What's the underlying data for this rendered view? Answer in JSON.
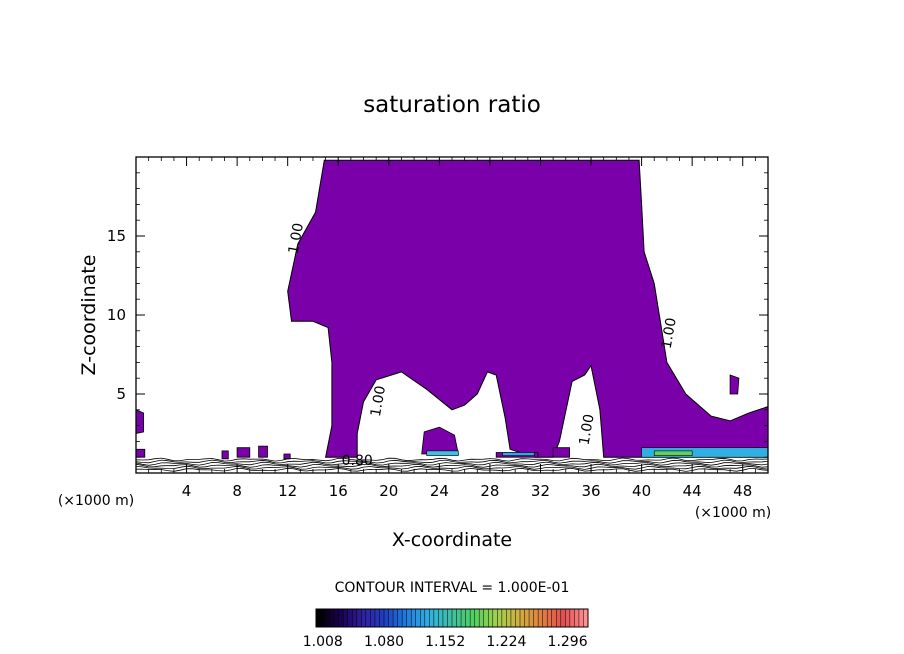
{
  "chart_data": {
    "type": "contour",
    "title": "saturation ratio",
    "xlabel": "X-coordinate",
    "ylabel": "Z-coordinate",
    "x_unit_label": "(×1000 m)",
    "y_unit_label": "(×1000 m)",
    "xlim": [
      0,
      50
    ],
    "ylim": [
      0,
      20
    ],
    "x_ticks": [
      4,
      8,
      12,
      16,
      20,
      24,
      28,
      32,
      36,
      40,
      44,
      48
    ],
    "y_ticks": [
      5,
      10,
      15
    ],
    "x_tick_labels": [
      "4",
      "8",
      "12",
      "16",
      "20",
      "24",
      "28",
      "32",
      "36",
      "40",
      "44",
      "48"
    ],
    "y_tick_labels": [
      "5",
      "10",
      "15"
    ],
    "contour_interval_text": "CONTOUR INTERVAL = 1.000E-01",
    "contour_labels": [
      {
        "text": "1.00",
        "x": 13.0,
        "z": 14.8
      },
      {
        "text": "1.00",
        "x": 19.5,
        "z": 4.5
      },
      {
        "text": "1.00",
        "x": 36.0,
        "z": 2.7
      },
      {
        "text": "1.00",
        "x": 42.5,
        "z": 8.8
      },
      {
        "text": "0.80",
        "x": 17.5,
        "z": 0.5
      }
    ],
    "main_region": {
      "level": 1.008,
      "color": "#7a00aa",
      "outline": [
        [
          14.9,
          19.8
        ],
        [
          39.8,
          19.8
        ],
        [
          40.0,
          17.0
        ],
        [
          40.2,
          14.0
        ],
        [
          41.0,
          12.0
        ],
        [
          41.5,
          9.5
        ],
        [
          42.0,
          7.0
        ],
        [
          43.5,
          5.0
        ],
        [
          45.5,
          3.6
        ],
        [
          47.0,
          3.3
        ],
        [
          48.5,
          3.8
        ],
        [
          50.0,
          4.2
        ],
        [
          50.0,
          1.0
        ],
        [
          37.0,
          1.0
        ],
        [
          36.7,
          4.0
        ],
        [
          36.0,
          6.8
        ],
        [
          35.5,
          6.2
        ],
        [
          34.5,
          5.8
        ],
        [
          33.5,
          2.0
        ],
        [
          33.0,
          1.0
        ],
        [
          31.5,
          1.0
        ],
        [
          29.6,
          1.5
        ],
        [
          29.2,
          3.5
        ],
        [
          28.5,
          6.2
        ],
        [
          27.8,
          6.4
        ],
        [
          27.0,
          5.0
        ],
        [
          26.0,
          4.3
        ],
        [
          25.0,
          4.0
        ],
        [
          23.0,
          5.3
        ],
        [
          21.0,
          6.4
        ],
        [
          19.0,
          5.9
        ],
        [
          18.0,
          4.5
        ],
        [
          17.5,
          2.5
        ],
        [
          17.5,
          1.0
        ],
        [
          15.0,
          1.0
        ],
        [
          15.5,
          3.0
        ],
        [
          15.5,
          7.0
        ],
        [
          15.2,
          9.2
        ],
        [
          14.0,
          9.6
        ],
        [
          12.3,
          9.6
        ],
        [
          12.0,
          11.5
        ],
        [
          12.8,
          14.5
        ],
        [
          14.2,
          16.5
        ]
      ],
      "islands": [
        [
          [
            0.0,
            4.0
          ],
          [
            0.6,
            3.8
          ],
          [
            0.6,
            2.6
          ],
          [
            0.0,
            2.5
          ]
        ],
        [
          [
            22.8,
            2.6
          ],
          [
            24.0,
            2.9
          ],
          [
            25.2,
            2.4
          ],
          [
            25.5,
            1.2
          ],
          [
            22.6,
            1.2
          ]
        ],
        [
          [
            28.5,
            1.3
          ],
          [
            31.8,
            1.3
          ],
          [
            31.8,
            1.0
          ],
          [
            28.5,
            1.0
          ]
        ],
        [
          [
            33.0,
            1.6
          ],
          [
            34.3,
            1.6
          ],
          [
            34.3,
            1.0
          ],
          [
            33.0,
            1.0
          ]
        ],
        [
          [
            47.0,
            6.2
          ],
          [
            47.7,
            6.0
          ],
          [
            47.6,
            5.0
          ],
          [
            47.0,
            5.0
          ]
        ],
        [
          [
            0.0,
            1.5
          ],
          [
            0.7,
            1.5
          ],
          [
            0.7,
            1.0
          ],
          [
            0.0,
            1.0
          ]
        ],
        [
          [
            6.8,
            1.4
          ],
          [
            7.3,
            1.4
          ],
          [
            7.3,
            0.9
          ],
          [
            6.8,
            0.9
          ]
        ],
        [
          [
            8.0,
            1.6
          ],
          [
            9.0,
            1.6
          ],
          [
            9.0,
            1.0
          ],
          [
            8.0,
            1.0
          ]
        ],
        [
          [
            9.7,
            1.7
          ],
          [
            10.4,
            1.7
          ],
          [
            10.4,
            1.0
          ],
          [
            9.7,
            1.0
          ]
        ],
        [
          [
            11.7,
            1.2
          ],
          [
            12.2,
            1.2
          ],
          [
            12.2,
            0.9
          ],
          [
            11.7,
            0.9
          ]
        ]
      ]
    },
    "high_level_patches": [
      {
        "x": [
          23.0,
          25.5
        ],
        "z": [
          1.1,
          1.4
        ],
        "color": "#40c0e0"
      },
      {
        "x": [
          29.0,
          31.5
        ],
        "z": [
          1.1,
          1.3
        ],
        "color": "#40a0f0"
      },
      {
        "x": [
          40.0,
          50.0
        ],
        "z": [
          1.0,
          1.6
        ],
        "color": "#30b0e0"
      },
      {
        "x": [
          41.0,
          44.0
        ],
        "z": [
          1.1,
          1.4
        ],
        "color": "#60d060"
      }
    ],
    "colorbar": {
      "min": 1.0,
      "max": 1.32,
      "tick_labels": [
        "1.008",
        "1.080",
        "1.152",
        "1.224",
        "1.296"
      ],
      "tick_values": [
        1.008,
        1.08,
        1.152,
        1.224,
        1.296
      ],
      "colors": [
        "#000000",
        "#1a0050",
        "#3020a0",
        "#2040c0",
        "#2080e0",
        "#30b0e0",
        "#40c0a0",
        "#50d060",
        "#a0d050",
        "#d0b040",
        "#e08040",
        "#e05050",
        "#ff9090"
      ]
    }
  }
}
